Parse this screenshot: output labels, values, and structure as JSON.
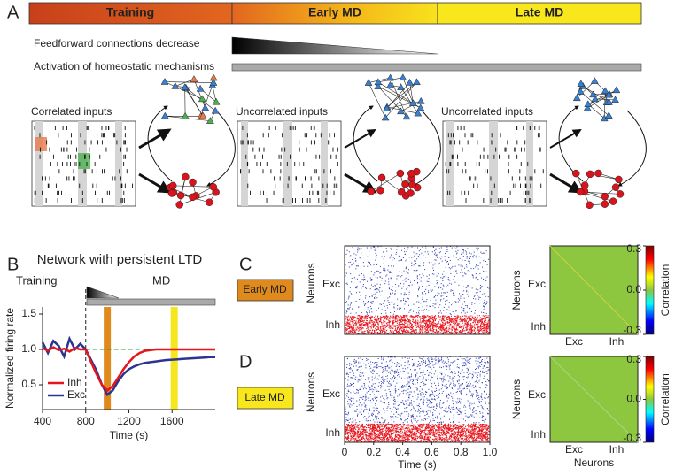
{
  "panel_labels": [
    "A",
    "B",
    "C",
    "D"
  ],
  "phases": [
    "Training",
    "Early MD",
    "Late MD"
  ],
  "feedforward_label": "Feedforward connections decrease",
  "homeostatic_label": "Activation of homeostatic mechanisms",
  "input_labels": [
    "Correlated inputs",
    "Uncorrelated inputs",
    "Uncorrelated inputs"
  ],
  "section_labels": [
    "Training",
    "MD"
  ],
  "condition_labels": [
    "Early MD",
    "Late MD"
  ],
  "chart_data": [
    {
      "type": "line",
      "title": "Network with persistent LTD",
      "x_label": "Time (s)",
      "y_label": "Normalized firing rate",
      "x": [
        400,
        450,
        500,
        550,
        600,
        650,
        700,
        750,
        800,
        850,
        900,
        950,
        1000,
        1050,
        1100,
        1150,
        1200,
        1250,
        1300,
        1350,
        1400,
        1450,
        1500,
        1550,
        1600,
        1650,
        1700,
        1750,
        1800,
        1850,
        1900,
        1950,
        2000
      ],
      "series": [
        {
          "name": "Inh",
          "color": "#e8141c",
          "values": [
            1.02,
            0.98,
            1.03,
            0.99,
            1.01,
            0.97,
            1.02,
            1.0,
            1.0,
            0.82,
            0.65,
            0.5,
            0.42,
            0.48,
            0.6,
            0.72,
            0.82,
            0.9,
            0.95,
            0.98,
            0.99,
            1.0,
            1.0,
            1.0,
            1.0,
            1.0,
            1.0,
            1.0,
            1.0,
            1.0,
            1.0,
            1.0,
            1.0
          ]
        },
        {
          "name": "Exc",
          "color": "#2b3491",
          "values": [
            1.1,
            0.95,
            1.12,
            1.05,
            0.9,
            1.15,
            1.0,
            1.08,
            1.0,
            0.85,
            0.7,
            0.5,
            0.36,
            0.42,
            0.55,
            0.65,
            0.72,
            0.76,
            0.79,
            0.81,
            0.82,
            0.83,
            0.84,
            0.85,
            0.855,
            0.86,
            0.865,
            0.87,
            0.875,
            0.88,
            0.885,
            0.89,
            0.89
          ]
        }
      ],
      "xlim": [
        400,
        2000
      ],
      "ylim": [
        0.15,
        1.6
      ],
      "xticks": [
        400,
        800,
        1200,
        1600
      ],
      "yticks": [
        0.5,
        {
          "value": 1.0,
          "label": "1.0"
        },
        1.5
      ],
      "reference_line": 1.0,
      "md_onset": 800,
      "highlights": [
        {
          "x": 1000,
          "color": "#e08a1e"
        },
        {
          "x": 1620,
          "color": "#f5e61e"
        }
      ],
      "legend": "lower left"
    },
    {
      "type": "raster",
      "y_label": "Neurons",
      "categories": [
        "Exc",
        "Inh"
      ],
      "xlim": [
        0,
        1
      ]
    },
    {
      "type": "heatmap",
      "y_label": "Neurons",
      "x_categories": [
        "Exc",
        "Inh"
      ],
      "y_categories": [
        "Exc",
        "Inh"
      ],
      "clim": [
        -0.3,
        0.3
      ],
      "colorbar_label": "Correlation",
      "colorbar_ticks": [
        0.3,
        {
          "value": 0,
          "label": "0.0"
        },
        -0.3
      ]
    },
    {
      "type": "raster",
      "y_label": "Neurons",
      "x_label": "Time (s)",
      "categories": [
        "Exc",
        "Inh"
      ],
      "xlim": [
        0,
        1
      ],
      "xticks": [
        0,
        0.2,
        0.4,
        0.6,
        0.8,
        {
          "value": 1.0,
          "label": "1.0"
        }
      ]
    },
    {
      "type": "heatmap",
      "y_label": "Neurons",
      "x_label": "Neurons",
      "x_categories": [
        "Exc",
        "Inh"
      ],
      "y_categories": [
        "Exc",
        "Inh"
      ],
      "clim": [
        -0.3,
        0.3
      ],
      "colorbar_label": "Correlation",
      "colorbar_ticks": [
        0.3,
        {
          "value": 0,
          "label": "0.0"
        },
        -0.3
      ]
    }
  ]
}
